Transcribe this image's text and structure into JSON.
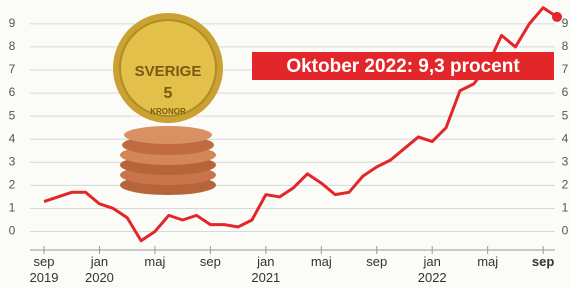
{
  "chart_data": {
    "type": "line",
    "annotation": "Oktober 2022: 9,3 procent",
    "coin_texts": [
      "SVERIGE",
      "5",
      "KRONOR"
    ],
    "categories": [
      "sep\n2019",
      null,
      null,
      null,
      "jan\n2020",
      null,
      null,
      null,
      "maj",
      null,
      null,
      null,
      "sep",
      null,
      null,
      null,
      "jan\n2021",
      null,
      null,
      null,
      "maj",
      null,
      null,
      null,
      "sep",
      null,
      null,
      null,
      "jan\n2022",
      null,
      null,
      null,
      "maj",
      null,
      null,
      null,
      "sep",
      null
    ],
    "series": [
      {
        "color": "#e3262a",
        "values": [
          1.3,
          1.5,
          1.7,
          1.7,
          1.2,
          1.0,
          0.6,
          -0.4,
          0.0,
          0.7,
          0.5,
          0.7,
          0.3,
          0.3,
          0.2,
          0.5,
          1.6,
          1.5,
          1.9,
          2.5,
          2.1,
          1.6,
          1.7,
          2.4,
          2.8,
          3.1,
          3.6,
          4.1,
          3.9,
          4.5,
          6.1,
          6.4,
          7.2,
          8.5,
          8.0,
          9.0,
          9.7,
          9.3
        ]
      }
    ],
    "ylim": [
      -0.8,
      9.6
    ],
    "yticks": [
      0,
      1,
      2,
      3,
      4,
      5,
      6,
      7,
      8,
      9
    ],
    "grid": true
  }
}
